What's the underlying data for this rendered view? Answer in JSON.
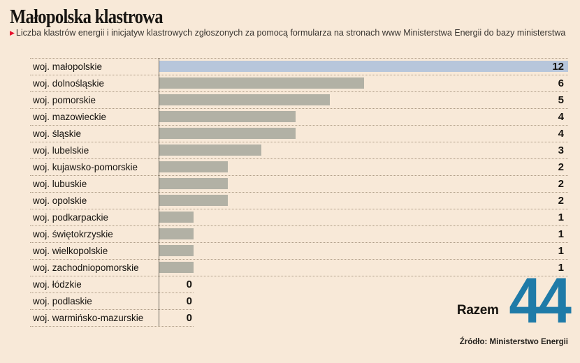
{
  "header": {
    "title": "Małopolska klastrowa",
    "subtitle": "Liczba klastrów energii i inicjatyw klastrowych zgłoszonych za pomocą formularza na stronach www Ministerstwa Energii do bazy ministerstwa",
    "bullet_icon": "▶"
  },
  "total": {
    "label": "Razem",
    "value": "44"
  },
  "footer": {
    "source": "Źródło: Ministerstwo Energii"
  },
  "colors": {
    "background": "#f8e9d8",
    "bar_default": "#b2b1a5",
    "bar_highlight": "#b7c6db",
    "accent_red": "#e8112d",
    "total_blue": "#1f7ba8",
    "text_dark": "#16130f",
    "separator_dots": "#ae9c86",
    "axis_line": "#6a665c"
  },
  "chart_data": {
    "type": "bar",
    "orientation": "horizontal",
    "title": "Małopolska klastrowa",
    "subtitle": "Liczba klastrów energii i inicjatyw klastrowych zgłoszonych za pomocą formularza na stronach www Ministerstwa Energii do bazy ministerstwa",
    "categories": [
      "woj. małopolskie",
      "woj. dolnośląskie",
      "woj. pomorskie",
      "woj. mazowieckie",
      "woj. śląskie",
      "woj. lubelskie",
      "woj. kujawsko-pomorskie",
      "woj. lubuskie",
      "woj. opolskie",
      "woj. podkarpackie",
      "woj. świętokrzyskie",
      "woj. wielkopolskie",
      "woj. zachodniopomorskie",
      "woj. łódzkie",
      "woj. podlaskie",
      "woj. warmińsko-mazurskie"
    ],
    "values": [
      12,
      6,
      5,
      4,
      4,
      3,
      2,
      2,
      2,
      1,
      1,
      1,
      1,
      0,
      0,
      0
    ],
    "highlight_index": 0,
    "max_value": 12,
    "xlim": [
      0,
      12
    ],
    "gridlines": false,
    "value_labels_position": "right-aligned column",
    "total_label": "Razem",
    "total_value": 44,
    "source": "Źródło: Ministerstwo Energii"
  }
}
